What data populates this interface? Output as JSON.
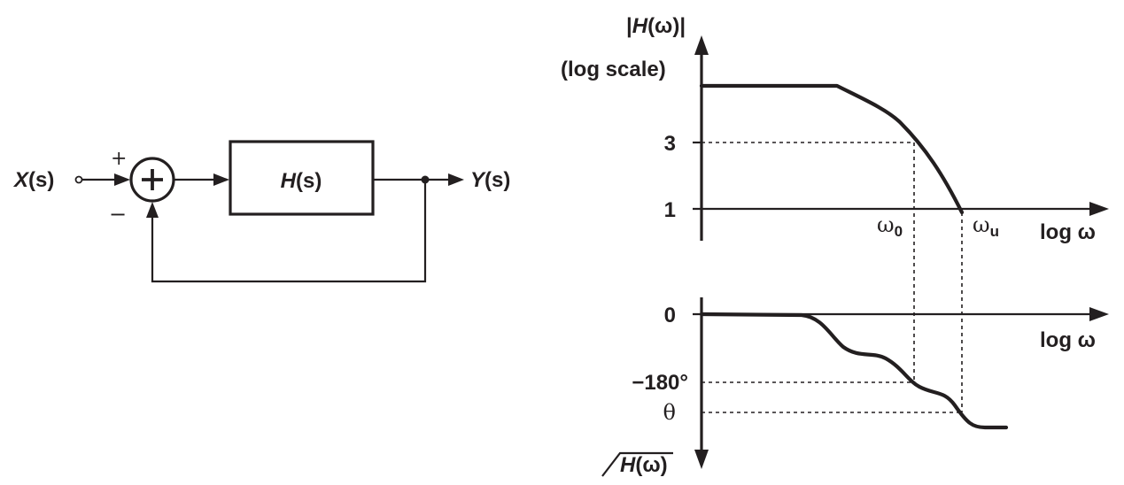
{
  "block_diagram": {
    "input_symbol": "X",
    "input_arg": "(s)",
    "output_symbol": "Y",
    "output_arg": "(s)",
    "block_symbol": "H",
    "block_arg": "(s)",
    "plus_sign": "+",
    "minus_sign": "−"
  },
  "magnitude_plot": {
    "ylabel_top_open": "|",
    "ylabel_symbol": "H",
    "ylabel_arg": "(ω)|",
    "ylabel_scale": "(log scale)",
    "tick_3": "3",
    "tick_1": "1",
    "omega0_base": "ω",
    "omega0_sub": "0",
    "omegau_base": "ω",
    "omegau_sub": "u",
    "xlabel": "log ω"
  },
  "phase_plot": {
    "tick_0": "0",
    "tick_180": "−180°",
    "tick_theta": "θ",
    "xlabel": "log ω",
    "ylabel_symbol": "H",
    "ylabel_arg": "(ω)"
  }
}
